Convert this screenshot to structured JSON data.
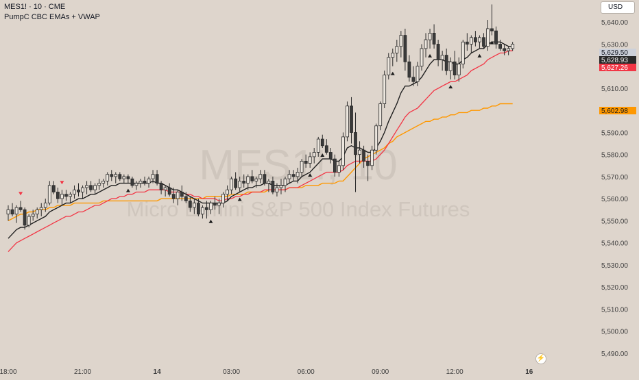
{
  "header": {
    "symbol": "MES1! · 10 · CME",
    "indicator": "PumpC CBC EMAs + VWAP"
  },
  "currency_label": "USD",
  "watermark": {
    "symbol": "MES1!, 10",
    "name": "Micro E-mini S&P 500 Index Futures"
  },
  "colors": {
    "background": "#ded5cc",
    "fast_ema": "#1f1f1f",
    "slow_ema": "#f23645",
    "vwap": "#ff9800",
    "bull_candle": "#ede7df",
    "bear_candle": "#3a3a3a",
    "signal_up": "#1f1f1f",
    "signal_down": "#f23645"
  },
  "chart_data": {
    "type": "candlestick",
    "ylim": [
      5485,
      5650
    ],
    "y_ticks": [
      5490,
      5500,
      5510,
      5520,
      5530,
      5540,
      5550,
      5560,
      5570,
      5580,
      5590,
      5600,
      5610,
      5620,
      5630,
      5640
    ],
    "y_tick_labels": [
      "5,490.00",
      "5,500.00",
      "5,510.00",
      "5,520.00",
      "5,530.00",
      "5,540.00",
      "5,550.00",
      "5,560.00",
      "5,570.00",
      "5,580.00",
      "5,590.00",
      "5,600.00",
      "5,610.00",
      "5,620.00",
      "5,630.00",
      "5,640.00"
    ],
    "x_ticks": [
      {
        "bar": 0,
        "label": "18:00",
        "bold": false
      },
      {
        "bar": 18,
        "label": "21:00",
        "bold": false
      },
      {
        "bar": 36,
        "label": "14",
        "bold": true
      },
      {
        "bar": 54,
        "label": "03:00",
        "bold": false
      },
      {
        "bar": 72,
        "label": "06:00",
        "bold": false
      },
      {
        "bar": 90,
        "label": "09:00",
        "bold": false
      },
      {
        "bar": 108,
        "label": "12:00",
        "bold": false
      },
      {
        "bar": 126,
        "label": "16",
        "bold": true
      }
    ],
    "candles": [
      [
        5553,
        5557,
        5550,
        5555
      ],
      [
        5555,
        5558,
        5552,
        5553
      ],
      [
        5553,
        5557,
        5549,
        5556
      ],
      [
        5556,
        5559,
        5554,
        5555
      ],
      [
        5555,
        5556,
        5546,
        5548
      ],
      [
        5548,
        5553,
        5547,
        5552
      ],
      [
        5552,
        5555,
        5550,
        5553
      ],
      [
        5553,
        5556,
        5551,
        5555
      ],
      [
        5555,
        5558,
        5552,
        5556
      ],
      [
        5556,
        5560,
        5554,
        5558
      ],
      [
        5558,
        5568,
        5557,
        5566
      ],
      [
        5566,
        5568,
        5562,
        5563
      ],
      [
        5563,
        5565,
        5558,
        5560
      ],
      [
        5560,
        5564,
        5557,
        5562
      ],
      [
        5562,
        5564,
        5559,
        5561
      ],
      [
        5561,
        5563,
        5558,
        5562
      ],
      [
        5562,
        5566,
        5560,
        5564
      ],
      [
        5564,
        5567,
        5561,
        5563
      ],
      [
        5563,
        5566,
        5560,
        5565
      ],
      [
        5565,
        5568,
        5562,
        5566
      ],
      [
        5566,
        5568,
        5563,
        5564
      ],
      [
        5564,
        5567,
        5562,
        5566
      ],
      [
        5566,
        5569,
        5564,
        5567
      ],
      [
        5567,
        5569,
        5565,
        5568
      ],
      [
        5568,
        5572,
        5566,
        5571
      ],
      [
        5571,
        5573,
        5568,
        5570
      ],
      [
        5570,
        5572,
        5567,
        5571
      ],
      [
        5571,
        5572,
        5568,
        5569
      ],
      [
        5569,
        5571,
        5567,
        5570
      ],
      [
        5570,
        5571,
        5567,
        5569
      ],
      [
        5569,
        5570,
        5565,
        5566
      ],
      [
        5566,
        5568,
        5564,
        5567
      ],
      [
        5567,
        5569,
        5565,
        5568
      ],
      [
        5568,
        5570,
        5566,
        5567
      ],
      [
        5567,
        5570,
        5565,
        5569
      ],
      [
        5569,
        5573,
        5567,
        5571
      ],
      [
        5571,
        5573,
        5566,
        5567
      ],
      [
        5567,
        5568,
        5562,
        5564
      ],
      [
        5564,
        5566,
        5561,
        5565
      ],
      [
        5565,
        5567,
        5561,
        5562
      ],
      [
        5562,
        5565,
        5558,
        5560
      ],
      [
        5560,
        5564,
        5557,
        5563
      ],
      [
        5563,
        5566,
        5559,
        5561
      ],
      [
        5561,
        5563,
        5558,
        5559
      ],
      [
        5559,
        5561,
        5554,
        5556
      ],
      [
        5556,
        5560,
        5553,
        5558
      ],
      [
        5558,
        5560,
        5552,
        5553
      ],
      [
        5553,
        5557,
        5551,
        5556
      ],
      [
        5556,
        5559,
        5551,
        5555
      ],
      [
        5555,
        5559,
        5553,
        5558
      ],
      [
        5558,
        5561,
        5555,
        5557
      ],
      [
        5557,
        5560,
        5553,
        5558
      ],
      [
        5558,
        5563,
        5556,
        5562
      ],
      [
        5562,
        5566,
        5559,
        5564
      ],
      [
        5564,
        5570,
        5562,
        5569
      ],
      [
        5569,
        5572,
        5564,
        5565
      ],
      [
        5565,
        5570,
        5563,
        5568
      ],
      [
        5568,
        5571,
        5565,
        5567
      ],
      [
        5567,
        5571,
        5564,
        5570
      ],
      [
        5570,
        5573,
        5567,
        5568
      ],
      [
        5568,
        5570,
        5565,
        5569
      ],
      [
        5569,
        5573,
        5567,
        5571
      ],
      [
        5571,
        5573,
        5566,
        5567
      ],
      [
        5567,
        5569,
        5563,
        5568
      ],
      [
        5568,
        5570,
        5562,
        5563
      ],
      [
        5563,
        5567,
        5561,
        5565
      ],
      [
        5565,
        5569,
        5562,
        5566
      ],
      [
        5566,
        5570,
        5563,
        5569
      ],
      [
        5569,
        5573,
        5567,
        5571
      ],
      [
        5571,
        5573,
        5568,
        5570
      ],
      [
        5570,
        5574,
        5567,
        5572
      ],
      [
        5572,
        5578,
        5570,
        5577
      ],
      [
        5577,
        5580,
        5574,
        5576
      ],
      [
        5576,
        5581,
        5574,
        5579
      ],
      [
        5579,
        5583,
        5576,
        5581
      ],
      [
        5581,
        5588,
        5579,
        5587
      ],
      [
        5587,
        5589,
        5583,
        5584
      ],
      [
        5584,
        5587,
        5580,
        5581
      ],
      [
        5581,
        5583,
        5576,
        5578
      ],
      [
        5578,
        5580,
        5570,
        5572
      ],
      [
        5572,
        5577,
        5570,
        5575
      ],
      [
        5575,
        5590,
        5573,
        5588
      ],
      [
        5588,
        5604,
        5586,
        5602
      ],
      [
        5602,
        5606,
        5585,
        5590
      ],
      [
        5590,
        5599,
        5563,
        5580
      ],
      [
        5580,
        5586,
        5576,
        5582
      ],
      [
        5582,
        5584,
        5574,
        5577
      ],
      [
        5577,
        5580,
        5568,
        5575
      ],
      [
        5575,
        5584,
        5573,
        5582
      ],
      [
        5582,
        5594,
        5580,
        5593
      ],
      [
        5593,
        5604,
        5591,
        5603
      ],
      [
        5603,
        5618,
        5601,
        5616
      ],
      [
        5616,
        5626,
        5614,
        5624
      ],
      [
        5624,
        5628,
        5620,
        5626
      ],
      [
        5626,
        5632,
        5622,
        5629
      ],
      [
        5629,
        5636,
        5624,
        5634
      ],
      [
        5634,
        5637,
        5618,
        5622
      ],
      [
        5622,
        5625,
        5613,
        5615
      ],
      [
        5615,
        5620,
        5611,
        5613
      ],
      [
        5613,
        5622,
        5611,
        5620
      ],
      [
        5620,
        5630,
        5618,
        5628
      ],
      [
        5628,
        5635,
        5624,
        5632
      ],
      [
        5632,
        5637,
        5628,
        5635
      ],
      [
        5635,
        5639,
        5628,
        5630
      ],
      [
        5630,
        5632,
        5620,
        5623
      ],
      [
        5623,
        5627,
        5618,
        5625
      ],
      [
        5625,
        5628,
        5616,
        5618
      ],
      [
        5618,
        5624,
        5614,
        5622
      ],
      [
        5622,
        5627,
        5614,
        5616
      ],
      [
        5616,
        5624,
        5613,
        5621
      ],
      [
        5621,
        5632,
        5619,
        5631
      ],
      [
        5631,
        5635,
        5627,
        5630
      ],
      [
        5630,
        5634,
        5626,
        5633
      ],
      [
        5633,
        5636,
        5629,
        5631
      ],
      [
        5631,
        5634,
        5628,
        5633
      ],
      [
        5633,
        5635,
        5628,
        5629
      ],
      [
        5629,
        5641,
        5627,
        5637
      ],
      [
        5637,
        5648,
        5634,
        5636
      ],
      [
        5636,
        5638,
        5628,
        5630
      ],
      [
        5630,
        5632,
        5627,
        5628
      ],
      [
        5628,
        5630,
        5625,
        5627
      ],
      [
        5627,
        5629,
        5625,
        5628
      ],
      [
        5628,
        5631,
        5627,
        5630
      ]
    ],
    "fast_ema": [
      5542,
      5544,
      5546,
      5547,
      5547,
      5548,
      5549,
      5550,
      5551,
      5552,
      5554,
      5555,
      5556,
      5557,
      5558,
      5558,
      5559,
      5560,
      5560,
      5561,
      5562,
      5562,
      5563,
      5564,
      5565,
      5566,
      5566,
      5567,
      5567,
      5567,
      5567,
      5567,
      5567,
      5567,
      5567,
      5568,
      5567,
      5567,
      5566,
      5565,
      5564,
      5564,
      5563,
      5562,
      5561,
      5560,
      5559,
      5558,
      5558,
      5558,
      5558,
      5558,
      5558,
      5559,
      5561,
      5562,
      5563,
      5564,
      5565,
      5565,
      5566,
      5566,
      5567,
      5567,
      5566,
      5566,
      5566,
      5566,
      5567,
      5568,
      5568,
      5570,
      5571,
      5572,
      5574,
      5576,
      5578,
      5578,
      5578,
      5577,
      5577,
      5579,
      5583,
      5584,
      5583,
      5583,
      5582,
      5581,
      5581,
      5583,
      5586,
      5590,
      5595,
      5599,
      5603,
      5608,
      5611,
      5611,
      5612,
      5613,
      5615,
      5618,
      5621,
      5623,
      5623,
      5623,
      5622,
      5622,
      5621,
      5621,
      5623,
      5624,
      5626,
      5627,
      5628,
      5628,
      5630,
      5631,
      5631,
      5631,
      5630,
      5629,
      5629
    ],
    "slow_ema": [
      5536,
      5538,
      5540,
      5541,
      5542,
      5543,
      5544,
      5545,
      5546,
      5547,
      5548,
      5549,
      5550,
      5551,
      5552,
      5552,
      5553,
      5554,
      5554,
      5555,
      5556,
      5557,
      5557,
      5558,
      5559,
      5560,
      5560,
      5561,
      5561,
      5562,
      5562,
      5563,
      5563,
      5563,
      5564,
      5564,
      5564,
      5564,
      5564,
      5563,
      5563,
      5563,
      5563,
      5562,
      5562,
      5561,
      5561,
      5560,
      5560,
      5560,
      5560,
      5559,
      5559,
      5560,
      5560,
      5561,
      5561,
      5562,
      5562,
      5563,
      5563,
      5563,
      5564,
      5564,
      5564,
      5564,
      5564,
      5564,
      5565,
      5565,
      5565,
      5566,
      5567,
      5568,
      5569,
      5570,
      5571,
      5572,
      5572,
      5572,
      5572,
      5573,
      5575,
      5576,
      5577,
      5577,
      5577,
      5577,
      5577,
      5578,
      5580,
      5582,
      5585,
      5588,
      5591,
      5594,
      5597,
      5599,
      5600,
      5601,
      5603,
      5605,
      5607,
      5609,
      5610,
      5611,
      5612,
      5613,
      5613,
      5614,
      5615,
      5616,
      5618,
      5619,
      5620,
      5621,
      5623,
      5624,
      5625,
      5626,
      5626,
      5627,
      5627
    ],
    "vwap": [
      5550,
      5551,
      5552,
      5553,
      5553,
      5554,
      5554,
      5555,
      5555,
      5555,
      5556,
      5556,
      5557,
      5557,
      5557,
      5557,
      5558,
      5558,
      5558,
      5558,
      5558,
      5558,
      5558,
      5559,
      5559,
      5559,
      5559,
      5559,
      5559,
      5559,
      5559,
      5559,
      5559,
      5559,
      5559,
      5559,
      5559,
      5560,
      5560,
      5560,
      5560,
      5560,
      5560,
      5560,
      5560,
      5560,
      5560,
      5560,
      5561,
      5561,
      5561,
      5561,
      5561,
      5561,
      5562,
      5562,
      5562,
      5562,
      5563,
      5563,
      5563,
      5563,
      5563,
      5564,
      5564,
      5564,
      5564,
      5564,
      5565,
      5565,
      5565,
      5565,
      5566,
      5566,
      5566,
      5566,
      5567,
      5567,
      5567,
      5567,
      5568,
      5568,
      5570,
      5572,
      5574,
      5576,
      5578,
      5579,
      5580,
      5581,
      5582,
      5583,
      5585,
      5586,
      5588,
      5589,
      5590,
      5591,
      5592,
      5593,
      5594,
      5595,
      5595,
      5596,
      5596,
      5597,
      5597,
      5598,
      5598,
      5599,
      5599,
      5599,
      5600,
      5600,
      5600,
      5601,
      5601,
      5602,
      5602,
      5603,
      5603,
      5603,
      5603
    ],
    "signals_up": [
      29,
      49,
      56,
      73,
      76,
      93,
      102,
      107,
      114,
      117
    ],
    "signals_down": [
      3,
      13
    ],
    "price_labels": [
      {
        "value": 5629.5,
        "label": "5,629.50",
        "style": "plain"
      },
      {
        "value": 5628.93,
        "label": "5,628.93",
        "style": "dark"
      },
      {
        "value": 5627.26,
        "label": "5,627.26",
        "style": "red"
      },
      {
        "value": 5602.98,
        "label": "5,602.98",
        "style": "orange"
      }
    ]
  }
}
